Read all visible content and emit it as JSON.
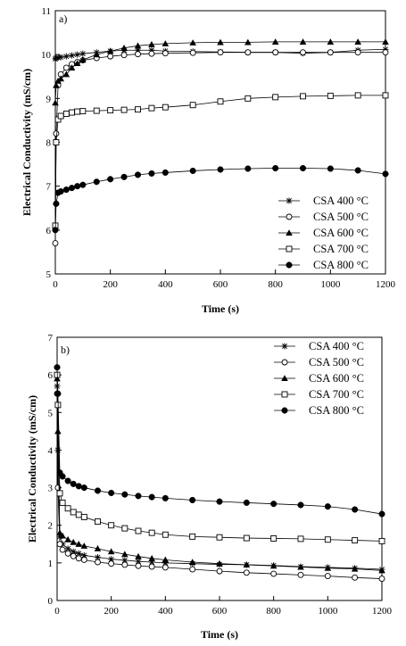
{
  "chart_data": [
    {
      "type": "line",
      "panel_label": "a)",
      "xlabel": "Time (s)",
      "ylabel": "Electrical Conductivity (mS/cm)",
      "xlim": [
        0,
        1200
      ],
      "ylim": [
        5,
        11
      ],
      "xticks": [
        0,
        200,
        400,
        600,
        800,
        1000,
        1200
      ],
      "yticks": [
        5,
        6,
        7,
        8,
        9,
        10,
        11
      ],
      "legend_position": "bottom-right",
      "series": [
        {
          "name": "CSA 400 °C",
          "marker": "star",
          "x": [
            0,
            3,
            10,
            20,
            40,
            60,
            80,
            100,
            150,
            200,
            250,
            300,
            350,
            400,
            500,
            600,
            700,
            800,
            900,
            1000,
            1100,
            1200
          ],
          "y": [
            9.9,
            9.92,
            9.93,
            9.94,
            9.96,
            9.98,
            10.0,
            10.02,
            10.05,
            10.08,
            10.1,
            10.1,
            10.1,
            10.08,
            10.07,
            10.06,
            10.05,
            10.05,
            10.03,
            10.05,
            10.1,
            10.12
          ]
        },
        {
          "name": "CSA 500 °C",
          "marker": "circle-open",
          "x": [
            0,
            3,
            10,
            20,
            40,
            60,
            80,
            100,
            150,
            200,
            250,
            300,
            350,
            400,
            500,
            600,
            700,
            800,
            900,
            1000,
            1100,
            1200
          ],
          "y": [
            5.7,
            8.2,
            9.3,
            9.55,
            9.7,
            9.78,
            9.83,
            9.87,
            9.92,
            9.96,
            9.99,
            10.01,
            10.02,
            10.03,
            10.04,
            10.05,
            10.05,
            10.05,
            10.05,
            10.05,
            10.05,
            10.05
          ]
        },
        {
          "name": "CSA 600 °C",
          "marker": "triangle-filled",
          "x": [
            0,
            3,
            10,
            20,
            40,
            60,
            80,
            100,
            150,
            200,
            250,
            300,
            350,
            400,
            500,
            600,
            700,
            800,
            900,
            1000,
            1100,
            1200
          ],
          "y": [
            8.9,
            9.3,
            9.4,
            9.45,
            9.55,
            9.7,
            9.8,
            9.88,
            10.0,
            10.08,
            10.15,
            10.2,
            10.23,
            10.25,
            10.27,
            10.28,
            10.28,
            10.29,
            10.29,
            10.29,
            10.29,
            10.29
          ]
        },
        {
          "name": "CSA 700 °C",
          "marker": "square-open",
          "x": [
            0,
            3,
            10,
            20,
            40,
            60,
            80,
            100,
            150,
            200,
            250,
            300,
            350,
            400,
            500,
            600,
            700,
            800,
            900,
            1000,
            1100,
            1200
          ],
          "y": [
            6.1,
            8.0,
            8.52,
            8.6,
            8.65,
            8.68,
            8.7,
            8.71,
            8.72,
            8.73,
            8.74,
            8.75,
            8.78,
            8.8,
            8.85,
            8.93,
            9.0,
            9.03,
            9.05,
            9.06,
            9.07,
            9.07
          ]
        },
        {
          "name": "CSA 800 °C",
          "marker": "circle-filled",
          "x": [
            0,
            3,
            10,
            20,
            40,
            60,
            80,
            100,
            150,
            200,
            250,
            300,
            350,
            400,
            500,
            600,
            700,
            800,
            900,
            1000,
            1100,
            1200
          ],
          "y": [
            6.0,
            6.6,
            6.85,
            6.88,
            6.92,
            6.96,
            7.0,
            7.03,
            7.1,
            7.16,
            7.21,
            7.26,
            7.29,
            7.31,
            7.35,
            7.38,
            7.4,
            7.41,
            7.41,
            7.4,
            7.36,
            7.28
          ]
        }
      ]
    },
    {
      "type": "line",
      "panel_label": "b)",
      "xlabel": "Time (s)",
      "ylabel": "Electrical Conductivity (mS/cm)",
      "xlim": [
        0,
        1200
      ],
      "ylim": [
        0,
        7
      ],
      "xticks": [
        0,
        200,
        400,
        600,
        800,
        1000,
        1200
      ],
      "yticks": [
        0,
        1,
        2,
        3,
        4,
        5,
        6,
        7
      ],
      "legend_position": "top-right",
      "series": [
        {
          "name": "CSA 400 °C",
          "marker": "star",
          "x": [
            0,
            3,
            10,
            20,
            40,
            60,
            80,
            100,
            150,
            200,
            250,
            300,
            350,
            400,
            500,
            600,
            700,
            800,
            900,
            1000,
            1100,
            1200
          ],
          "y": [
            5.7,
            4.0,
            1.7,
            1.5,
            1.38,
            1.3,
            1.25,
            1.2,
            1.15,
            1.1,
            1.07,
            1.04,
            1.02,
            1.0,
            0.98,
            0.96,
            0.95,
            0.93,
            0.9,
            0.88,
            0.86,
            0.83
          ]
        },
        {
          "name": "CSA 500 °C",
          "marker": "circle-open",
          "x": [
            0,
            3,
            10,
            20,
            40,
            60,
            80,
            100,
            150,
            200,
            250,
            300,
            350,
            400,
            500,
            600,
            700,
            800,
            900,
            1000,
            1100,
            1200
          ],
          "y": [
            5.5,
            3.0,
            1.5,
            1.35,
            1.25,
            1.18,
            1.12,
            1.08,
            1.02,
            0.98,
            0.95,
            0.92,
            0.9,
            0.88,
            0.83,
            0.78,
            0.74,
            0.71,
            0.68,
            0.65,
            0.61,
            0.58
          ]
        },
        {
          "name": "CSA 600 °C",
          "marker": "triangle-filled",
          "x": [
            0,
            3,
            10,
            20,
            40,
            60,
            80,
            100,
            150,
            200,
            250,
            300,
            350,
            400,
            500,
            600,
            700,
            800,
            900,
            1000,
            1100,
            1200
          ],
          "y": [
            5.9,
            4.5,
            1.8,
            1.72,
            1.62,
            1.55,
            1.5,
            1.45,
            1.38,
            1.3,
            1.23,
            1.17,
            1.12,
            1.08,
            1.02,
            0.98,
            0.95,
            0.92,
            0.89,
            0.86,
            0.84,
            0.8
          ]
        },
        {
          "name": "CSA 700 °C",
          "marker": "square-open",
          "x": [
            0,
            3,
            10,
            20,
            40,
            60,
            80,
            100,
            150,
            200,
            250,
            300,
            350,
            400,
            500,
            600,
            700,
            800,
            900,
            1000,
            1100,
            1200
          ],
          "y": [
            6.0,
            5.2,
            2.85,
            2.6,
            2.45,
            2.35,
            2.28,
            2.22,
            2.1,
            2.0,
            1.92,
            1.85,
            1.8,
            1.75,
            1.7,
            1.68,
            1.66,
            1.65,
            1.64,
            1.62,
            1.6,
            1.58
          ]
        },
        {
          "name": "CSA 800 °C",
          "marker": "circle-filled",
          "x": [
            0,
            3,
            10,
            20,
            40,
            60,
            80,
            100,
            150,
            200,
            250,
            300,
            350,
            400,
            500,
            600,
            700,
            800,
            900,
            1000,
            1100,
            1200
          ],
          "y": [
            6.2,
            5.5,
            3.4,
            3.3,
            3.18,
            3.1,
            3.04,
            3.0,
            2.92,
            2.86,
            2.82,
            2.78,
            2.75,
            2.72,
            2.67,
            2.63,
            2.6,
            2.57,
            2.54,
            2.5,
            2.42,
            2.3
          ]
        }
      ]
    }
  ]
}
